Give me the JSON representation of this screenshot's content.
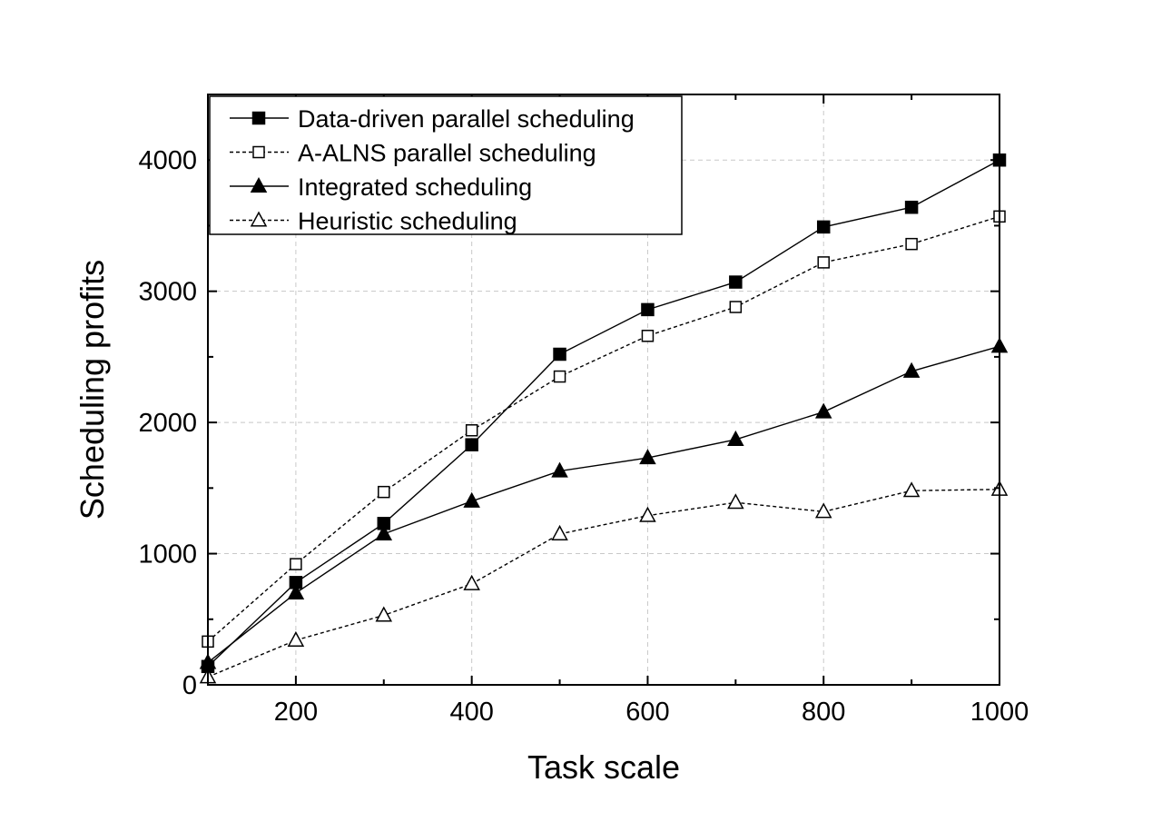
{
  "chart_data": {
    "type": "line",
    "xlabel": "Task scale",
    "ylabel": "Scheduling profits",
    "xlim": [
      100,
      1000
    ],
    "ylim": [
      0,
      4500
    ],
    "xticks": [
      200,
      400,
      600,
      800,
      1000
    ],
    "yticks": [
      0,
      1000,
      2000,
      3000,
      4000
    ],
    "xtick_labels": [
      "200",
      "400",
      "600",
      "800",
      "1000"
    ],
    "ytick_labels": [
      "0",
      "1000",
      "2000",
      "3000",
      "4000"
    ],
    "grid": true,
    "legend_position": "top-left",
    "x": [
      100,
      200,
      300,
      400,
      500,
      600,
      700,
      800,
      900,
      1000
    ],
    "series": [
      {
        "name": "Data-driven parallel scheduling",
        "marker": "filled-square",
        "line": "solid",
        "color": "#000000",
        "values": [
          140,
          780,
          1230,
          1830,
          2520,
          2860,
          3070,
          3490,
          3640,
          4000
        ]
      },
      {
        "name": "A-ALNS parallel scheduling",
        "marker": "open-square",
        "line": "dashed",
        "color": "#000000",
        "values": [
          330,
          920,
          1470,
          1940,
          2350,
          2660,
          2880,
          3220,
          3360,
          3570
        ]
      },
      {
        "name": "Integrated scheduling",
        "marker": "filled-triangle",
        "line": "solid",
        "color": "#000000",
        "values": [
          170,
          700,
          1150,
          1400,
          1630,
          1730,
          1870,
          2080,
          2390,
          2580
        ]
      },
      {
        "name": "Heuristic scheduling",
        "marker": "open-triangle",
        "line": "dashed",
        "color": "#000000",
        "values": [
          60,
          340,
          530,
          770,
          1150,
          1290,
          1390,
          1320,
          1480,
          1490
        ]
      }
    ]
  }
}
